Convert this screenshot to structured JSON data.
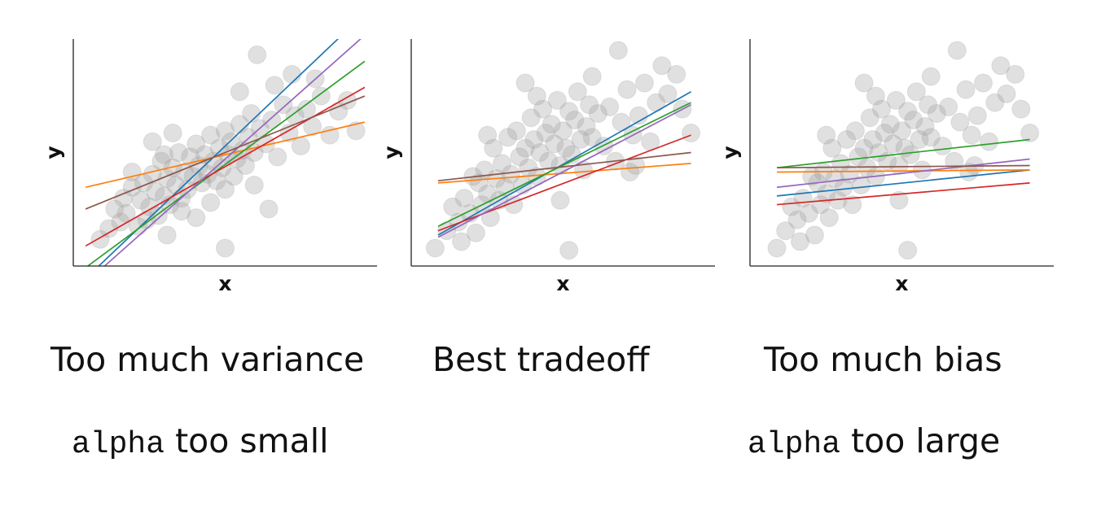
{
  "chart_data": [
    {
      "type": "scatter",
      "xlabel": "x",
      "ylabel": "y",
      "grid": false,
      "point_color": "#9e9e9e",
      "points": [
        [
          0.7,
          1.0
        ],
        [
          1.0,
          1.5
        ],
        [
          1.2,
          2.4
        ],
        [
          1.4,
          1.8
        ],
        [
          1.5,
          2.9
        ],
        [
          1.6,
          2.2
        ],
        [
          1.8,
          3.4
        ],
        [
          2.0,
          1.6
        ],
        [
          2.1,
          2.8
        ],
        [
          2.2,
          3.6
        ],
        [
          2.3,
          1.9
        ],
        [
          2.4,
          2.5
        ],
        [
          2.5,
          4.0
        ],
        [
          2.6,
          3.2
        ],
        [
          2.7,
          2.1
        ],
        [
          2.8,
          4.6
        ],
        [
          2.9,
          3.0
        ],
        [
          3.0,
          3.8
        ],
        [
          3.1,
          2.6
        ],
        [
          3.2,
          4.3
        ],
        [
          3.3,
          3.5
        ],
        [
          3.4,
          5.0
        ],
        [
          3.5,
          2.9
        ],
        [
          3.6,
          4.1
        ],
        [
          3.7,
          3.3
        ],
        [
          3.8,
          4.8
        ],
        [
          3.9,
          3.9
        ],
        [
          4.0,
          5.4
        ],
        [
          4.1,
          4.4
        ],
        [
          4.2,
          3.6
        ],
        [
          4.3,
          4.9
        ],
        [
          4.4,
          4.0
        ],
        [
          4.5,
          5.8
        ],
        [
          4.6,
          4.6
        ],
        [
          4.7,
          3.7
        ],
        [
          4.8,
          5.2
        ],
        [
          4.9,
          4.3
        ],
        [
          5.0,
          6.0
        ],
        [
          5.1,
          4.9
        ],
        [
          5.2,
          5.5
        ],
        [
          5.3,
          3.9
        ],
        [
          5.4,
          4.7
        ],
        [
          5.5,
          6.3
        ],
        [
          5.6,
          5.1
        ],
        [
          5.7,
          4.4
        ],
        [
          5.8,
          5.7
        ],
        [
          5.9,
          6.8
        ],
        [
          6.0,
          5.0
        ],
        [
          6.2,
          6.1
        ],
        [
          6.4,
          5.4
        ],
        [
          6.6,
          6.5
        ],
        [
          6.8,
          4.8
        ],
        [
          7.0,
          7.2
        ],
        [
          7.2,
          5.9
        ],
        [
          7.4,
          6.7
        ],
        [
          7.6,
          5.3
        ],
        [
          7.8,
          7.0
        ],
        [
          8.0,
          6.2
        ],
        [
          8.3,
          7.6
        ],
        [
          8.6,
          5.8
        ],
        [
          8.9,
          6.9
        ],
        [
          9.2,
          7.4
        ],
        [
          9.5,
          6.0
        ],
        [
          3.0,
          1.2
        ],
        [
          3.5,
          2.3
        ],
        [
          4.0,
          2.0
        ],
        [
          4.5,
          2.7
        ],
        [
          5.0,
          3.3
        ],
        [
          6.0,
          3.5
        ],
        [
          6.5,
          2.4
        ],
        [
          2.5,
          5.5
        ],
        [
          3.2,
          5.9
        ],
        [
          5.5,
          7.8
        ],
        [
          6.7,
          8.1
        ],
        [
          7.3,
          8.6
        ],
        [
          5.0,
          0.6
        ],
        [
          6.1,
          9.5
        ],
        [
          8.1,
          8.4
        ],
        [
          1.8,
          4.1
        ],
        [
          2.9,
          4.9
        ]
      ],
      "fit_lines": [
        {
          "color": "#1f77b4",
          "x": [
            0.2,
            9.8
          ],
          "y": [
            -0.8,
            11.4
          ]
        },
        {
          "color": "#ff7f0e",
          "x": [
            0.2,
            9.8
          ],
          "y": [
            3.4,
            6.4
          ]
        },
        {
          "color": "#2ca02c",
          "x": [
            0.2,
            9.8
          ],
          "y": [
            -0.3,
            9.2
          ]
        },
        {
          "color": "#d62728",
          "x": [
            0.2,
            9.8
          ],
          "y": [
            0.7,
            8.0
          ]
        },
        {
          "color": "#9467bd",
          "x": [
            0.2,
            9.8
          ],
          "y": [
            -1.0,
            10.4
          ]
        },
        {
          "color": "#8c564b",
          "x": [
            0.2,
            9.8
          ],
          "y": [
            2.4,
            7.6
          ]
        }
      ],
      "xlim": [
        0,
        10
      ],
      "ylim": [
        0,
        10
      ]
    },
    {
      "type": "scatter",
      "xlabel": "x",
      "ylabel": "y",
      "grid": false,
      "point_color": "#9e9e9e",
      "points": [
        [
          0.6,
          0.6
        ],
        [
          1.0,
          1.4
        ],
        [
          1.2,
          2.5
        ],
        [
          1.4,
          1.8
        ],
        [
          1.5,
          0.9
        ],
        [
          1.6,
          2.9
        ],
        [
          1.8,
          2.2
        ],
        [
          2.0,
          1.3
        ],
        [
          2.1,
          3.6
        ],
        [
          2.2,
          2.6
        ],
        [
          2.3,
          4.2
        ],
        [
          2.4,
          3.1
        ],
        [
          2.5,
          2.0
        ],
        [
          2.6,
          5.2
        ],
        [
          2.7,
          3.8
        ],
        [
          2.8,
          2.8
        ],
        [
          2.9,
          4.5
        ],
        [
          3.0,
          3.4
        ],
        [
          3.1,
          5.7
        ],
        [
          3.2,
          4.0
        ],
        [
          3.3,
          2.6
        ],
        [
          3.4,
          6.0
        ],
        [
          3.5,
          4.8
        ],
        [
          3.6,
          3.5
        ],
        [
          3.7,
          5.2
        ],
        [
          3.8,
          4.3
        ],
        [
          3.9,
          6.6
        ],
        [
          4.0,
          5.6
        ],
        [
          4.1,
          3.9
        ],
        [
          4.2,
          5.0
        ],
        [
          4.3,
          7.0
        ],
        [
          4.4,
          5.9
        ],
        [
          4.5,
          4.6
        ],
        [
          4.6,
          6.3
        ],
        [
          4.7,
          5.4
        ],
        [
          4.8,
          7.4
        ],
        [
          4.9,
          4.4
        ],
        [
          5.0,
          6.0
        ],
        [
          5.1,
          5.2
        ],
        [
          5.2,
          6.9
        ],
        [
          5.3,
          4.9
        ],
        [
          5.4,
          6.5
        ],
        [
          5.5,
          7.8
        ],
        [
          5.6,
          5.6
        ],
        [
          5.7,
          4.2
        ],
        [
          5.8,
          6.2
        ],
        [
          5.9,
          7.2
        ],
        [
          6.0,
          5.7
        ],
        [
          6.2,
          6.8
        ],
        [
          6.4,
          5.3
        ],
        [
          6.6,
          7.1
        ],
        [
          6.8,
          4.6
        ],
        [
          7.0,
          6.4
        ],
        [
          7.2,
          7.9
        ],
        [
          7.4,
          5.8
        ],
        [
          7.6,
          6.7
        ],
        [
          7.8,
          8.2
        ],
        [
          8.0,
          5.5
        ],
        [
          8.2,
          7.3
        ],
        [
          8.4,
          9.0
        ],
        [
          8.6,
          7.7
        ],
        [
          8.9,
          8.6
        ],
        [
          9.1,
          7.0
        ],
        [
          9.4,
          5.9
        ],
        [
          5.2,
          0.5
        ],
        [
          6.9,
          9.7
        ],
        [
          3.7,
          8.2
        ],
        [
          4.1,
          7.6
        ],
        [
          7.3,
          4.1
        ],
        [
          2.4,
          5.8
        ],
        [
          6.0,
          8.5
        ],
        [
          7.5,
          4.4
        ],
        [
          1.9,
          3.9
        ],
        [
          4.9,
          2.8
        ]
      ],
      "fit_lines": [
        {
          "color": "#1f77b4",
          "x": [
            0.7,
            9.4
          ],
          "y": [
            1.2,
            7.8
          ]
        },
        {
          "color": "#ff7f0e",
          "x": [
            0.7,
            9.4
          ],
          "y": [
            3.6,
            4.5
          ]
        },
        {
          "color": "#2ca02c",
          "x": [
            0.7,
            9.4
          ],
          "y": [
            1.6,
            7.3
          ]
        },
        {
          "color": "#d62728",
          "x": [
            0.7,
            9.4
          ],
          "y": [
            1.4,
            5.8
          ]
        },
        {
          "color": "#9467bd",
          "x": [
            0.7,
            9.4
          ],
          "y": [
            1.1,
            7.2
          ]
        },
        {
          "color": "#8c564b",
          "x": [
            0.7,
            9.4
          ],
          "y": [
            3.7,
            5.0
          ]
        }
      ],
      "xlim": [
        0,
        10
      ],
      "ylim": [
        0,
        10
      ]
    },
    {
      "type": "scatter",
      "xlabel": "x",
      "ylabel": "y",
      "grid": false,
      "point_color": "#9e9e9e",
      "points": [
        [
          0.7,
          0.6
        ],
        [
          1.0,
          1.4
        ],
        [
          1.2,
          2.5
        ],
        [
          1.4,
          1.9
        ],
        [
          1.5,
          0.9
        ],
        [
          1.6,
          2.9
        ],
        [
          1.8,
          2.2
        ],
        [
          2.0,
          1.2
        ],
        [
          2.1,
          3.6
        ],
        [
          2.2,
          2.6
        ],
        [
          2.3,
          4.1
        ],
        [
          2.4,
          3.1
        ],
        [
          2.5,
          2.0
        ],
        [
          2.6,
          5.2
        ],
        [
          2.7,
          3.8
        ],
        [
          2.8,
          2.8
        ],
        [
          2.9,
          4.5
        ],
        [
          3.0,
          3.4
        ],
        [
          3.1,
          5.6
        ],
        [
          3.2,
          4.0
        ],
        [
          3.3,
          2.6
        ],
        [
          3.4,
          6.0
        ],
        [
          3.5,
          4.8
        ],
        [
          3.6,
          3.5
        ],
        [
          3.7,
          5.2
        ],
        [
          3.8,
          4.3
        ],
        [
          3.9,
          6.6
        ],
        [
          4.0,
          5.6
        ],
        [
          4.1,
          3.9
        ],
        [
          4.2,
          5.0
        ],
        [
          4.3,
          7.0
        ],
        [
          4.4,
          5.9
        ],
        [
          4.5,
          4.6
        ],
        [
          4.6,
          6.3
        ],
        [
          4.7,
          5.4
        ],
        [
          4.8,
          7.4
        ],
        [
          4.9,
          4.4
        ],
        [
          5.0,
          6.0
        ],
        [
          5.1,
          5.2
        ],
        [
          5.2,
          6.9
        ],
        [
          5.3,
          4.9
        ],
        [
          5.4,
          6.5
        ],
        [
          5.5,
          7.8
        ],
        [
          5.6,
          5.6
        ],
        [
          5.7,
          4.2
        ],
        [
          5.8,
          6.2
        ],
        [
          5.9,
          7.2
        ],
        [
          6.0,
          5.7
        ],
        [
          6.2,
          6.8
        ],
        [
          6.4,
          5.3
        ],
        [
          6.6,
          7.1
        ],
        [
          6.8,
          4.6
        ],
        [
          7.0,
          6.4
        ],
        [
          7.2,
          7.9
        ],
        [
          7.4,
          5.8
        ],
        [
          7.6,
          6.7
        ],
        [
          7.8,
          8.2
        ],
        [
          8.0,
          5.5
        ],
        [
          8.2,
          7.3
        ],
        [
          8.4,
          9.0
        ],
        [
          8.6,
          7.7
        ],
        [
          8.9,
          8.6
        ],
        [
          9.1,
          7.0
        ],
        [
          9.4,
          5.9
        ],
        [
          5.2,
          0.5
        ],
        [
          6.9,
          9.7
        ],
        [
          3.7,
          8.2
        ],
        [
          4.1,
          7.6
        ],
        [
          7.3,
          4.1
        ],
        [
          2.4,
          5.8
        ],
        [
          6.0,
          8.5
        ],
        [
          7.5,
          4.4
        ],
        [
          1.9,
          3.9
        ],
        [
          4.9,
          2.8
        ]
      ],
      "fit_lines": [
        {
          "color": "#1f77b4",
          "x": [
            0.7,
            9.4
          ],
          "y": [
            3.0,
            4.2
          ]
        },
        {
          "color": "#ff7f0e",
          "x": [
            0.7,
            9.4
          ],
          "y": [
            4.1,
            4.2
          ]
        },
        {
          "color": "#2ca02c",
          "x": [
            0.7,
            9.4
          ],
          "y": [
            4.3,
            5.6
          ]
        },
        {
          "color": "#d62728",
          "x": [
            0.7,
            9.4
          ],
          "y": [
            2.6,
            3.6
          ]
        },
        {
          "color": "#9467bd",
          "x": [
            0.7,
            9.4
          ],
          "y": [
            3.4,
            4.7
          ]
        },
        {
          "color": "#8c564b",
          "x": [
            0.7,
            9.4
          ],
          "y": [
            4.3,
            4.4
          ]
        }
      ],
      "xlim": [
        0,
        10
      ],
      "ylim": [
        0,
        10
      ]
    }
  ],
  "captions": {
    "left_title": "Too much variance",
    "left_code": "alpha",
    "left_suffix": " too small",
    "middle_title": "Best tradeoff",
    "right_title": "Too much bias",
    "right_code": "alpha",
    "right_suffix": " too large"
  }
}
